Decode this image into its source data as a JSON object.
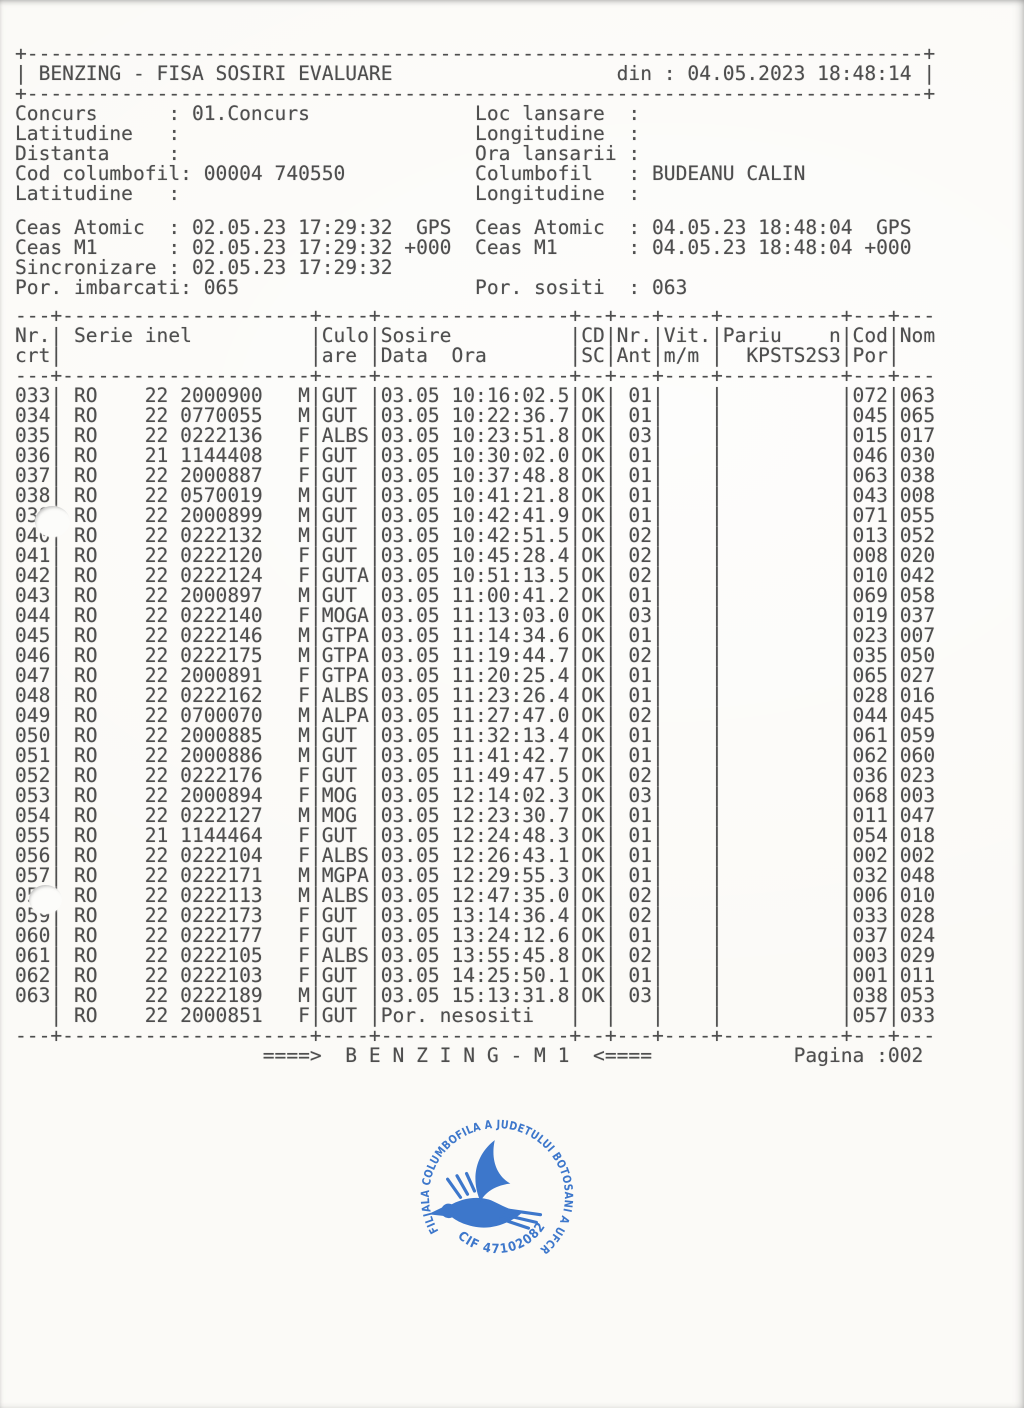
{
  "header": {
    "title": "BENZING - FISA SOSIRI EVALUARE",
    "printed": {
      "label": "din",
      "value": "04.05.2023 18:48:14"
    }
  },
  "info_rows": [
    {
      "l_label": "Concurs",
      "l_value": "01.Concurs",
      "r_label": "Loc lansare",
      "r_value": ""
    },
    {
      "l_label": "Latitudine",
      "l_value": "",
      "r_label": "Longitudine",
      "r_value": ""
    },
    {
      "l_label": "Distanta",
      "l_value": "",
      "r_label": "Ora lansarii",
      "r_value": ""
    },
    {
      "l_label": "Cod columbofil",
      "l_value": "00004 740550",
      "r_label": "Columbofil",
      "r_value": "BUDEANU CALIN"
    },
    {
      "l_label": "Latitudine",
      "l_value": "",
      "r_label": "Longitudine",
      "r_value": ""
    }
  ],
  "clock_rows": [
    {
      "l_label": "Ceas Atomic",
      "l_value": "02.05.23 17:29:32  GPS",
      "r_label": "Ceas Atomic",
      "r_value": "04.05.23 18:48:04  GPS"
    },
    {
      "l_label": "Ceas M1",
      "l_value": "02.05.23 17:29:32 +000",
      "r_label": "Ceas M1",
      "r_value": "04.05.23 18:48:04 +000"
    },
    {
      "l_label": "Sincronizare",
      "l_value": "02.05.23 17:29:32",
      "r_label": "",
      "r_value": ""
    },
    {
      "l_label": "Por. imbarcati",
      "l_value": "065",
      "r_label": "Por. sositi",
      "r_value": "063"
    }
  ],
  "table": {
    "header_row1": [
      "Nr.",
      " Serie inel",
      "Culo",
      "Sosire",
      "CD",
      "Nr.",
      "Vit.",
      "Pariu    n",
      "Cod",
      "Nom"
    ],
    "header_row2": [
      "crt",
      "",
      "are",
      "Data  Ora",
      "SC",
      "Ant",
      "m/m",
      "  KPSTS2S3",
      "Por",
      ""
    ],
    "columns": [
      "nr",
      "country",
      "year",
      "ring",
      "sex",
      "color",
      "arrival",
      "cd_sc",
      "nr_ant",
      "cod_por",
      "nom"
    ],
    "rows": [
      [
        "033",
        "RO",
        "22",
        "2000900",
        "M",
        "GUT",
        "03.05 10:16:02.5",
        "OK",
        "01",
        "072",
        "063"
      ],
      [
        "034",
        "RO",
        "22",
        "0770055",
        "M",
        "GUT",
        "03.05 10:22:36.7",
        "OK",
        "01",
        "045",
        "065"
      ],
      [
        "035",
        "RO",
        "22",
        "0222136",
        "F",
        "ALBS",
        "03.05 10:23:51.8",
        "OK",
        "03",
        "015",
        "017"
      ],
      [
        "036",
        "RO",
        "21",
        "1144408",
        "F",
        "GUT",
        "03.05 10:30:02.0",
        "OK",
        "01",
        "046",
        "030"
      ],
      [
        "037",
        "RO",
        "22",
        "2000887",
        "F",
        "GUT",
        "03.05 10:37:48.8",
        "OK",
        "01",
        "063",
        "038"
      ],
      [
        "038",
        "RO",
        "22",
        "0570019",
        "M",
        "GUT",
        "03.05 10:41:21.8",
        "OK",
        "01",
        "043",
        "008"
      ],
      [
        "039",
        "RO",
        "22",
        "2000899",
        "M",
        "GUT",
        "03.05 10:42:41.9",
        "OK",
        "01",
        "071",
        "055"
      ],
      [
        "040",
        "RO",
        "22",
        "0222132",
        "M",
        "GUT",
        "03.05 10:42:51.5",
        "OK",
        "02",
        "013",
        "052"
      ],
      [
        "041",
        "RO",
        "22",
        "0222120",
        "F",
        "GUT",
        "03.05 10:45:28.4",
        "OK",
        "02",
        "008",
        "020"
      ],
      [
        "042",
        "RO",
        "22",
        "0222124",
        "F",
        "GUTA",
        "03.05 10:51:13.5",
        "OK",
        "02",
        "010",
        "042"
      ],
      [
        "043",
        "RO",
        "22",
        "2000897",
        "M",
        "GUT",
        "03.05 11:00:41.2",
        "OK",
        "01",
        "069",
        "058"
      ],
      [
        "044",
        "RO",
        "22",
        "0222140",
        "F",
        "MOGA",
        "03.05 11:13:03.0",
        "OK",
        "03",
        "019",
        "037"
      ],
      [
        "045",
        "RO",
        "22",
        "0222146",
        "M",
        "GTPA",
        "03.05 11:14:34.6",
        "OK",
        "01",
        "023",
        "007"
      ],
      [
        "046",
        "RO",
        "22",
        "0222175",
        "M",
        "GTPA",
        "03.05 11:19:44.7",
        "OK",
        "02",
        "035",
        "050"
      ],
      [
        "047",
        "RO",
        "22",
        "2000891",
        "F",
        "GTPA",
        "03.05 11:20:25.4",
        "OK",
        "01",
        "065",
        "027"
      ],
      [
        "048",
        "RO",
        "22",
        "0222162",
        "F",
        "ALBS",
        "03.05 11:23:26.4",
        "OK",
        "01",
        "028",
        "016"
      ],
      [
        "049",
        "RO",
        "22",
        "0700070",
        "M",
        "ALPA",
        "03.05 11:27:47.0",
        "OK",
        "02",
        "044",
        "045"
      ],
      [
        "050",
        "RO",
        "22",
        "2000885",
        "M",
        "GUT",
        "03.05 11:32:13.4",
        "OK",
        "01",
        "061",
        "059"
      ],
      [
        "051",
        "RO",
        "22",
        "2000886",
        "M",
        "GUT",
        "03.05 11:41:42.7",
        "OK",
        "01",
        "062",
        "060"
      ],
      [
        "052",
        "RO",
        "22",
        "0222176",
        "F",
        "GUT",
        "03.05 11:49:47.5",
        "OK",
        "02",
        "036",
        "023"
      ],
      [
        "053",
        "RO",
        "22",
        "2000894",
        "F",
        "MOG",
        "03.05 12:14:02.3",
        "OK",
        "03",
        "068",
        "003"
      ],
      [
        "054",
        "RO",
        "22",
        "0222127",
        "M",
        "MOG",
        "03.05 12:23:30.7",
        "OK",
        "01",
        "011",
        "047"
      ],
      [
        "055",
        "RO",
        "21",
        "1144464",
        "F",
        "GUT",
        "03.05 12:24:48.3",
        "OK",
        "01",
        "054",
        "018"
      ],
      [
        "056",
        "RO",
        "22",
        "0222104",
        "F",
        "ALBS",
        "03.05 12:26:43.1",
        "OK",
        "01",
        "002",
        "002"
      ],
      [
        "057",
        "RO",
        "22",
        "0222171",
        "M",
        "MGPA",
        "03.05 12:29:55.3",
        "OK",
        "01",
        "032",
        "048"
      ],
      [
        "058",
        "RO",
        "22",
        "0222113",
        "M",
        "ALBS",
        "03.05 12:47:35.0",
        "OK",
        "02",
        "006",
        "010"
      ],
      [
        "059",
        "RO",
        "22",
        "0222173",
        "F",
        "GUT",
        "03.05 13:14:36.4",
        "OK",
        "02",
        "033",
        "028"
      ],
      [
        "060",
        "RO",
        "22",
        "0222177",
        "F",
        "GUT",
        "03.05 13:24:12.6",
        "OK",
        "01",
        "037",
        "024"
      ],
      [
        "061",
        "RO",
        "22",
        "0222105",
        "F",
        "ALBS",
        "03.05 13:55:45.8",
        "OK",
        "02",
        "003",
        "029"
      ],
      [
        "062",
        "RO",
        "22",
        "0222103",
        "F",
        "GUT",
        "03.05 14:25:50.1",
        "OK",
        "01",
        "001",
        "011"
      ],
      [
        "063",
        "RO",
        "22",
        "0222189",
        "M",
        "GUT",
        "03.05 15:13:31.8",
        "OK",
        "03",
        "038",
        "053"
      ],
      [
        "",
        "RO",
        "22",
        "2000851",
        "F",
        "GUT",
        "Por. nesositi",
        "",
        "",
        "057",
        "033"
      ]
    ]
  },
  "footer": {
    "benzing": "====>  B E N Z I N G - M 1  <====",
    "pagina": "Pagina :002"
  },
  "stamp": {
    "ring_text": "FILIALA COLUMBOFILA A JUDETULUI BOTOSANI A UFCR",
    "cif_text": "CIF 47102082",
    "color": "#2d6cc8"
  },
  "colors": {
    "ink": "#4e4e4e",
    "paper": "#fbfaf7"
  }
}
